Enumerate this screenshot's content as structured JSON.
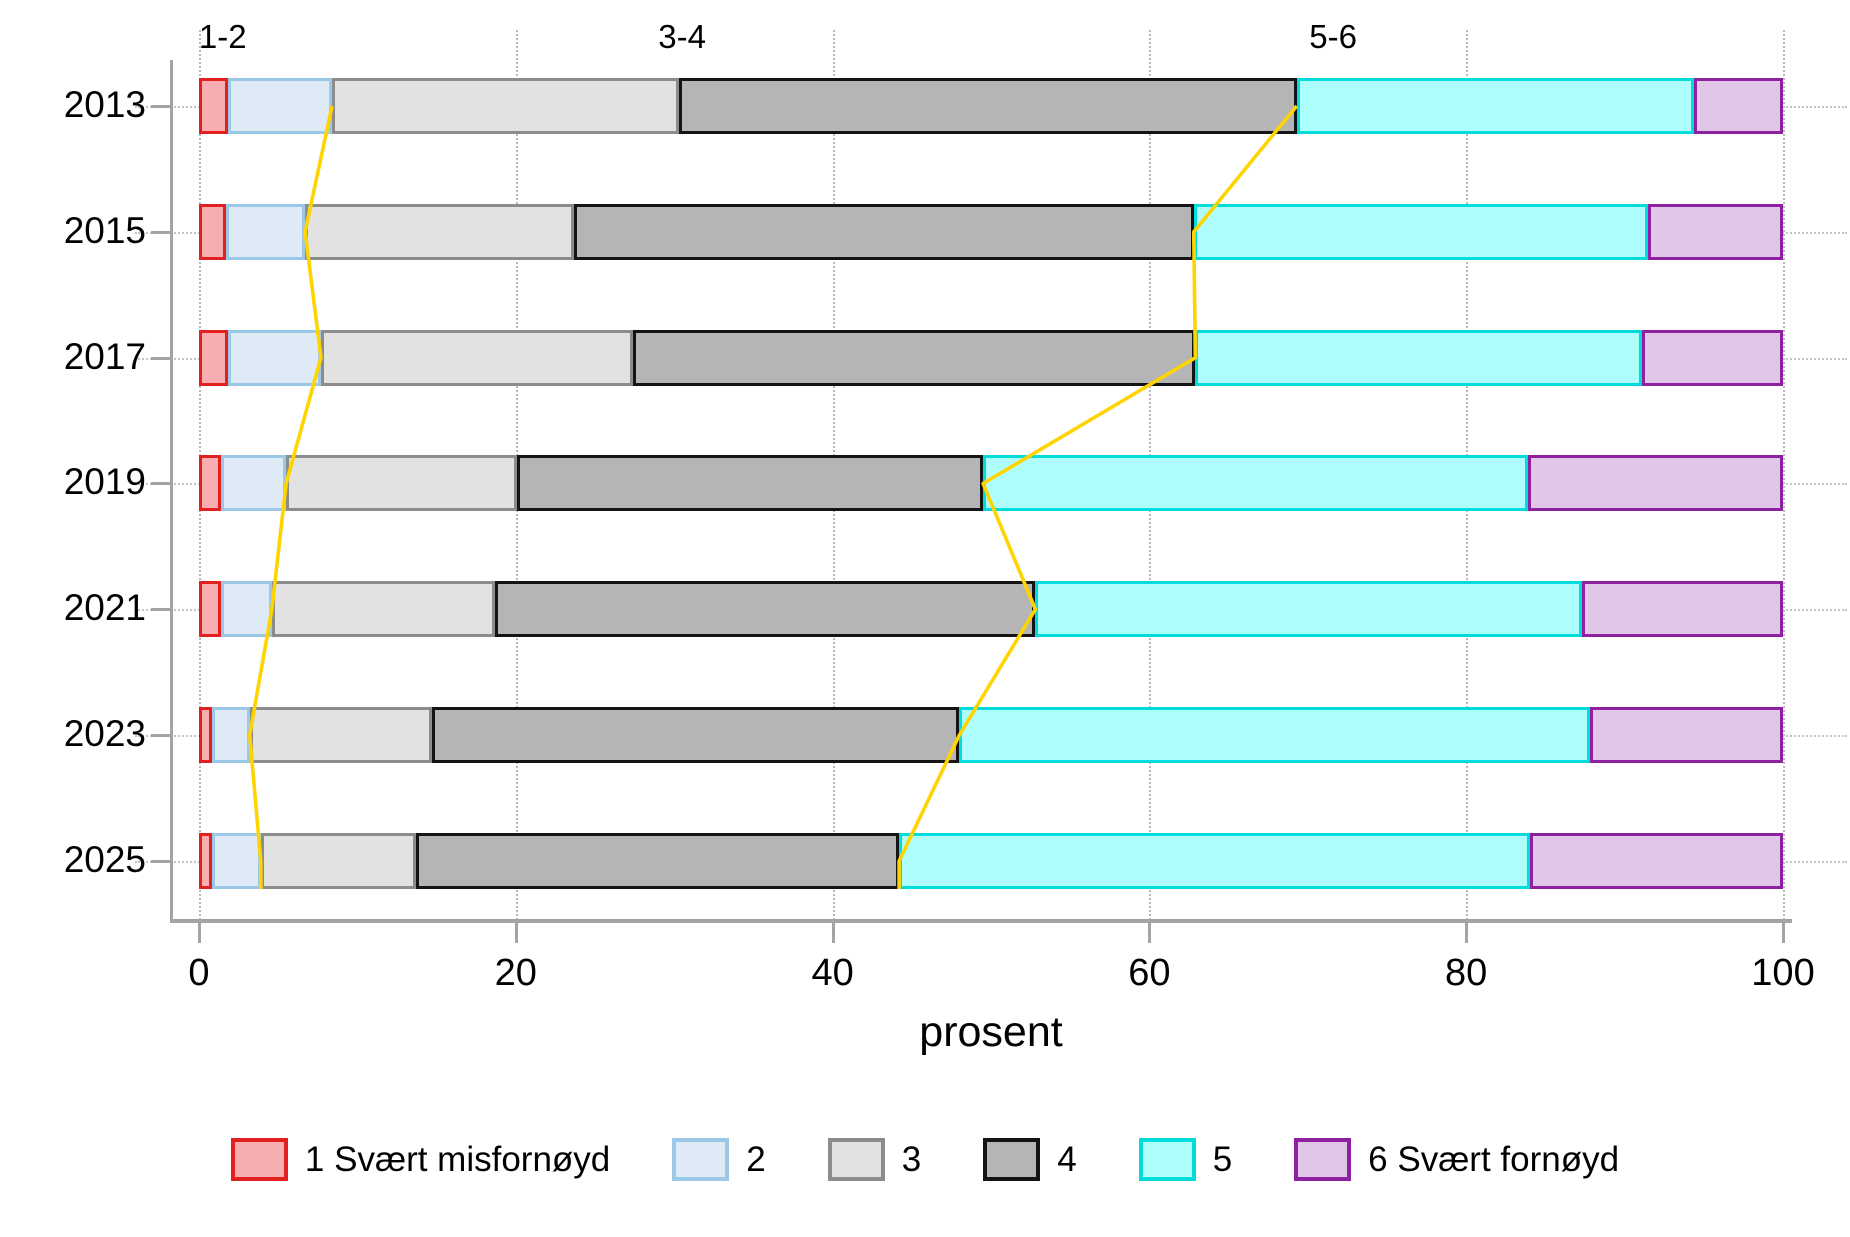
{
  "chart_data": {
    "type": "bar",
    "orientation": "horizontal",
    "stacked": true,
    "xlabel": "prosent",
    "xlim": [
      0,
      100
    ],
    "x_ticks": [
      0,
      20,
      40,
      60,
      80,
      100
    ],
    "grid": "dotted",
    "legend_position": "bottom",
    "categories": [
      "2013",
      "2015",
      "2017",
      "2019",
      "2021",
      "2023",
      "2025"
    ],
    "series": [
      {
        "name": "1 Svært misfornøyd",
        "fill": "#F8ADB0",
        "border": "#E2201F",
        "values": [
          1.8,
          1.7,
          1.8,
          1.4,
          1.4,
          0.8,
          0.8
        ]
      },
      {
        "name": "2",
        "fill": "#DEEBF7",
        "border": "#9CC8E8",
        "values": [
          6.6,
          5.0,
          5.9,
          4.1,
          3.2,
          2.4,
          3.1
        ]
      },
      {
        "name": "3",
        "fill": "#E2E2E2",
        "border": "#8C8C8C",
        "values": [
          21.9,
          17.0,
          19.7,
          14.6,
          14.1,
          11.5,
          9.8
        ]
      },
      {
        "name": "4",
        "fill": "#B5B5B5",
        "border": "#141414",
        "values": [
          39.0,
          39.1,
          35.5,
          29.4,
          34.1,
          33.3,
          30.5
        ]
      },
      {
        "name": "5",
        "fill": "#AEFEFE",
        "border": "#00DCDC",
        "values": [
          25.1,
          28.7,
          28.2,
          34.4,
          34.5,
          39.8,
          39.8
        ]
      },
      {
        "name": "6 Svært fornøyd",
        "fill": "#E2C6E7",
        "border": "#8E21A0",
        "values": [
          5.6,
          8.5,
          8.9,
          16.1,
          12.7,
          12.2,
          16.0
        ]
      }
    ],
    "group_labels": [
      {
        "label": "1-2",
        "x": 1.5
      },
      {
        "label": "3-4",
        "x": 30.5
      },
      {
        "label": "5-6",
        "x": 71.6
      }
    ],
    "connector_lines": [
      {
        "name": "boundary-2-3",
        "color": "#FFD400",
        "values": [
          8.4,
          6.7,
          7.7,
          5.5,
          4.6,
          3.2,
          3.9
        ]
      },
      {
        "name": "boundary-4-5",
        "color": "#FFD400",
        "values": [
          69.3,
          62.8,
          62.9,
          49.5,
          52.8,
          48.0,
          44.2
        ]
      }
    ]
  }
}
